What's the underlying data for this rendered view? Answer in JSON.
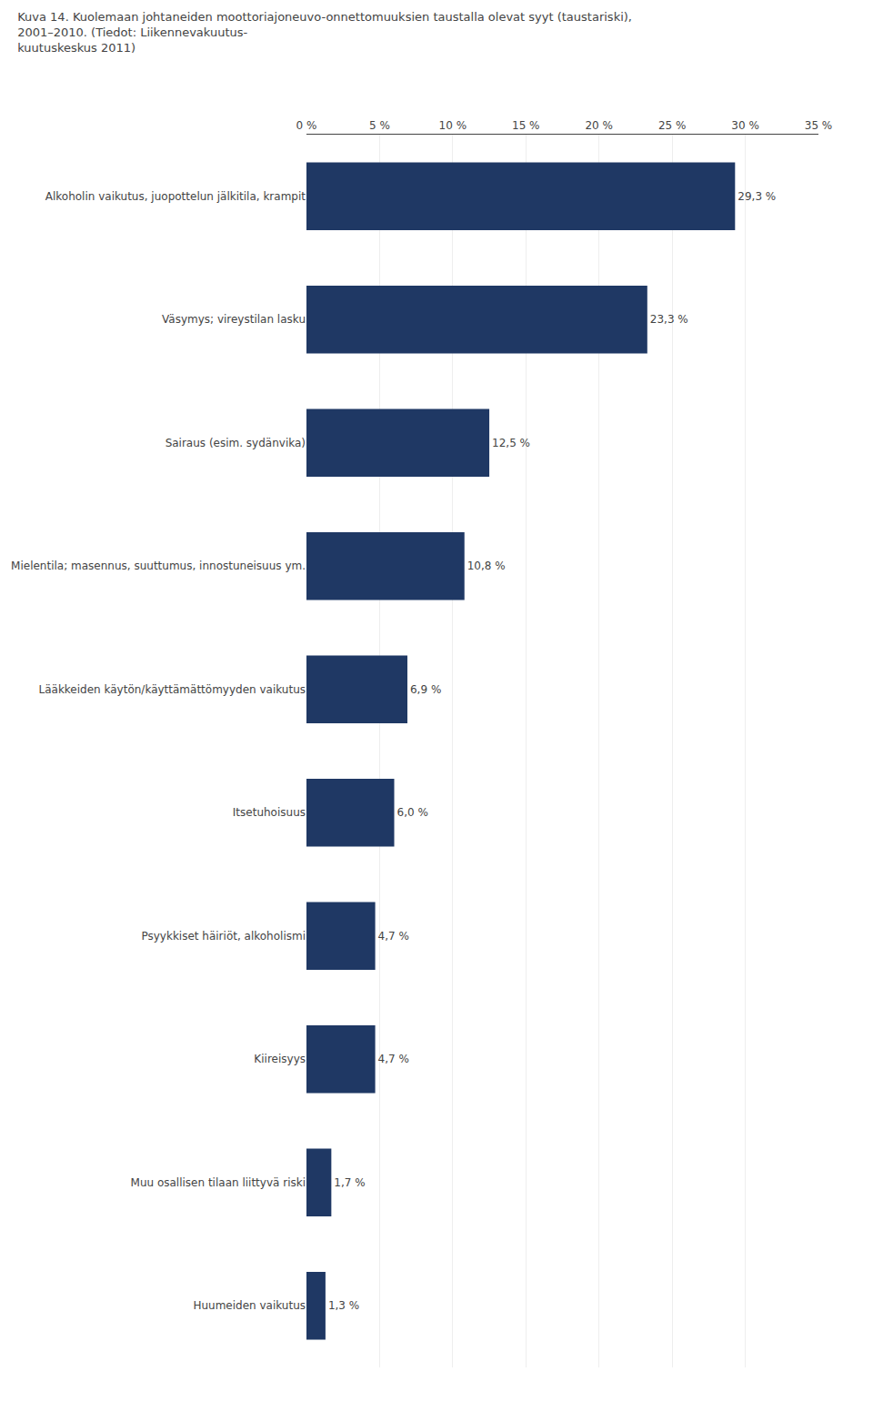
{
  "chart_data": {
    "type": "bar",
    "orientation": "horizontal",
    "title": "Kuva 14. Kuolemaan johtaneiden moottoriajoneuvo-onnettomuuksien taustalla olevat syyt (taustariski), 2001–2010. (Tiedot: Liikennevakuutus-\nkuutuskeskus 2011)",
    "categories": [
      "Alkoholin vaikutus, juopottelun jälkitila, krampit",
      "Väsymys; vireystilan lasku",
      "Sairaus (esim. sydänvika)",
      "Mielentila; masennus, suuttumus, innostuneisuus ym.",
      "Lääkkeiden käytön/käyttämättömyyden vaikutus",
      "Itsetuhoisuus",
      "Psyykkiset häiriöt, alkoholismi",
      "Kiireisyys",
      "Muu osallisen tilaan liittyvä riski",
      "Huumeiden vaikutus"
    ],
    "values": [
      29.3,
      23.3,
      12.5,
      10.8,
      6.9,
      6.0,
      4.7,
      4.7,
      1.7,
      1.3
    ],
    "value_labels": [
      "29,3 %",
      "23,3 %",
      "12,5 %",
      "10,8 %",
      "6,9 %",
      "6,0 %",
      "4,7 %",
      "4,7 %",
      "1,7 %",
      "1,3 %"
    ],
    "data_labels": true,
    "color": "#1F3864",
    "xlim": [
      0,
      35
    ],
    "xticks": [
      {
        "value": 0,
        "label": "0 %"
      },
      {
        "value": 5,
        "label": "5 %"
      },
      {
        "value": 10,
        "label": "10 %"
      },
      {
        "value": 15,
        "label": "15 %"
      },
      {
        "value": 20,
        "label": "20 %"
      },
      {
        "value": 25,
        "label": "25 %"
      },
      {
        "value": 30,
        "label": "30 %"
      },
      {
        "value": 35,
        "label": "35 %"
      }
    ],
    "grid": true
  }
}
